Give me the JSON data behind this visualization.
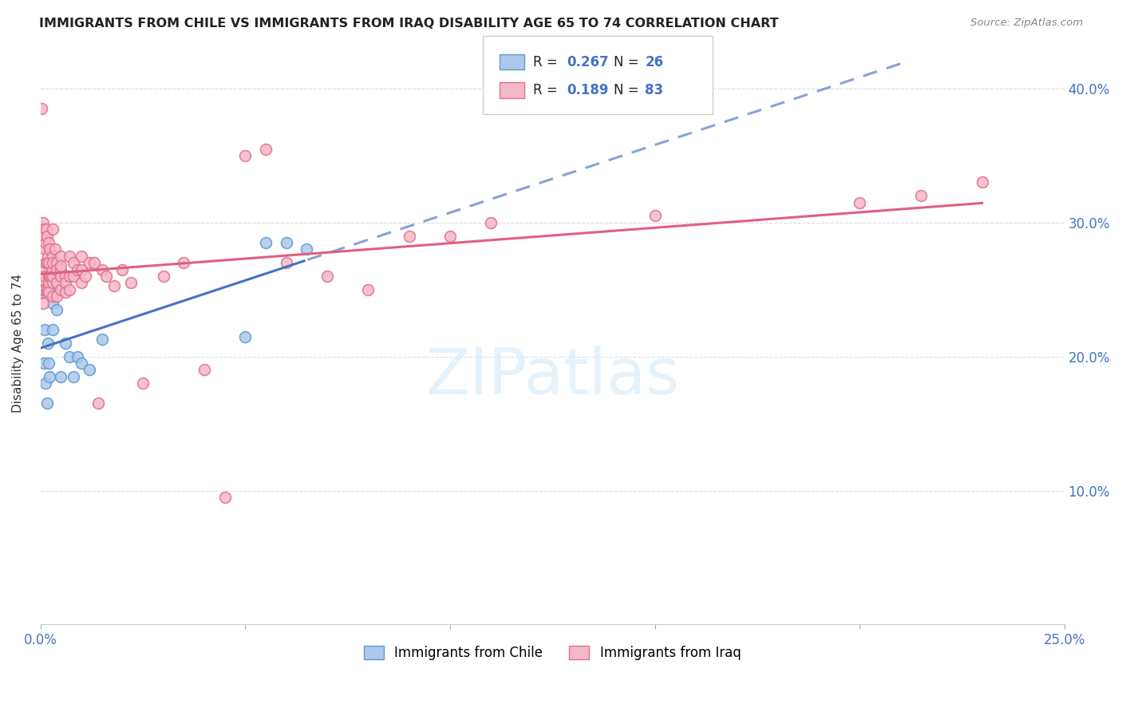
{
  "title": "IMMIGRANTS FROM CHILE VS IMMIGRANTS FROM IRAQ DISABILITY AGE 65 TO 74 CORRELATION CHART",
  "source": "Source: ZipAtlas.com",
  "ylabel": "Disability Age 65 to 74",
  "xlim": [
    0.0,
    0.25
  ],
  "ylim": [
    0.0,
    0.42
  ],
  "xtick_positions": [
    0.0,
    0.05,
    0.1,
    0.15,
    0.2,
    0.25
  ],
  "xtick_labels": [
    "0.0%",
    "",
    "",
    "",
    "",
    "25.0%"
  ],
  "ytick_positions": [
    0.0,
    0.1,
    0.2,
    0.3,
    0.4
  ],
  "ytick_labels_right": [
    "",
    "10.0%",
    "20.0%",
    "30.0%",
    "40.0%"
  ],
  "chile_color": "#adc8e8",
  "chile_edge_color": "#5b9bd5",
  "iraq_color": "#f4b8c8",
  "iraq_edge_color": "#e07090",
  "chile_line_color": "#4472c4",
  "iraq_line_color": "#e06080",
  "chile_R": 0.267,
  "chile_N": 26,
  "iraq_R": 0.189,
  "iraq_N": 83,
  "legend_label_chile": "Immigrants from Chile",
  "legend_label_iraq": "Immigrants from Iraq",
  "watermark": "ZIPatlas",
  "chile_x": [
    0.0005,
    0.0008,
    0.001,
    0.0012,
    0.0015,
    0.0018,
    0.002,
    0.0022,
    0.0025,
    0.003,
    0.003,
    0.0035,
    0.004,
    0.004,
    0.005,
    0.006,
    0.007,
    0.008,
    0.009,
    0.01,
    0.012,
    0.015,
    0.05,
    0.055,
    0.06,
    0.065
  ],
  "chile_y": [
    0.248,
    0.195,
    0.22,
    0.18,
    0.165,
    0.21,
    0.195,
    0.185,
    0.26,
    0.24,
    0.22,
    0.25,
    0.255,
    0.235,
    0.185,
    0.21,
    0.2,
    0.185,
    0.2,
    0.195,
    0.19,
    0.213,
    0.215,
    0.285,
    0.285,
    0.28
  ],
  "iraq_x": [
    0.0003,
    0.0005,
    0.0005,
    0.0006,
    0.0007,
    0.0008,
    0.0008,
    0.001,
    0.001,
    0.001,
    0.001,
    0.001,
    0.0012,
    0.0012,
    0.0013,
    0.0015,
    0.0015,
    0.0016,
    0.0017,
    0.0018,
    0.002,
    0.002,
    0.002,
    0.002,
    0.002,
    0.0022,
    0.0022,
    0.0025,
    0.003,
    0.003,
    0.003,
    0.003,
    0.003,
    0.003,
    0.003,
    0.0035,
    0.004,
    0.004,
    0.004,
    0.004,
    0.005,
    0.005,
    0.005,
    0.005,
    0.005,
    0.006,
    0.006,
    0.006,
    0.007,
    0.007,
    0.007,
    0.008,
    0.008,
    0.009,
    0.01,
    0.01,
    0.01,
    0.011,
    0.012,
    0.013,
    0.014,
    0.015,
    0.016,
    0.018,
    0.02,
    0.022,
    0.025,
    0.03,
    0.035,
    0.04,
    0.045,
    0.05,
    0.055,
    0.06,
    0.07,
    0.08,
    0.09,
    0.1,
    0.11,
    0.15,
    0.2,
    0.215,
    0.23
  ],
  "iraq_y": [
    0.385,
    0.255,
    0.25,
    0.24,
    0.3,
    0.25,
    0.295,
    0.29,
    0.28,
    0.265,
    0.26,
    0.25,
    0.285,
    0.27,
    0.295,
    0.27,
    0.25,
    0.29,
    0.25,
    0.275,
    0.285,
    0.27,
    0.255,
    0.248,
    0.26,
    0.28,
    0.26,
    0.26,
    0.295,
    0.275,
    0.265,
    0.255,
    0.245,
    0.27,
    0.26,
    0.28,
    0.27,
    0.265,
    0.255,
    0.245,
    0.275,
    0.265,
    0.26,
    0.25,
    0.268,
    0.26,
    0.255,
    0.248,
    0.275,
    0.26,
    0.25,
    0.27,
    0.26,
    0.265,
    0.265,
    0.275,
    0.255,
    0.26,
    0.27,
    0.27,
    0.165,
    0.265,
    0.26,
    0.253,
    0.265,
    0.255,
    0.18,
    0.26,
    0.27,
    0.19,
    0.095,
    0.35,
    0.355,
    0.27,
    0.26,
    0.25,
    0.29,
    0.29,
    0.3,
    0.305,
    0.315,
    0.32,
    0.33
  ]
}
